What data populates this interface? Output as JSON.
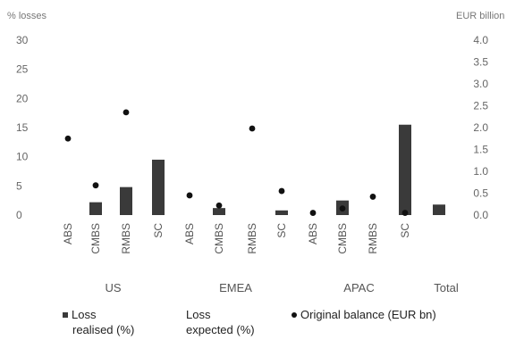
{
  "chart_data": {
    "type": "bar",
    "y_left_label": "% losses",
    "y_right_label": "EUR billion",
    "ylim_left": [
      0,
      30
    ],
    "yticks_left": [
      0,
      5,
      10,
      15,
      20,
      25,
      30
    ],
    "ylim_right": [
      0,
      4.0
    ],
    "yticks_right": [
      "0.0",
      "0.5",
      "1.0",
      "1.5",
      "2.0",
      "2.5",
      "3.0",
      "3.5",
      "4.0"
    ],
    "groups": [
      {
        "label": "US",
        "categories": [
          "ABS",
          "CMBS",
          "RMBS",
          "SC"
        ]
      },
      {
        "label": "EMEA",
        "categories": [
          "ABS",
          "CMBS",
          "RMBS",
          "SC"
        ]
      },
      {
        "label": "APAC",
        "categories": [
          "ABS",
          "CMBS",
          "RMBS",
          "SC"
        ]
      },
      {
        "label": "Total",
        "categories": [
          ""
        ]
      }
    ],
    "series": [
      {
        "name": "Loss realised (%)",
        "axis": "left",
        "kind": "bar",
        "values": [
          0,
          2.2,
          4.8,
          9.5,
          0,
          1.2,
          0,
          0.8,
          0,
          2.5,
          0,
          15.5,
          1.8
        ]
      },
      {
        "name": "Loss expected (%)",
        "axis": "left",
        "kind": "bar",
        "values": [
          0,
          0,
          0,
          0,
          0,
          0,
          0,
          0,
          0,
          0,
          0,
          0,
          0
        ]
      },
      {
        "name": "Original balance (EUR bn)",
        "axis": "right",
        "kind": "point",
        "values": [
          1.75,
          0.68,
          2.35,
          null,
          0.45,
          0.22,
          1.98,
          0.55,
          0.05,
          0.15,
          0.42,
          0.05,
          null
        ]
      }
    ],
    "colors": {
      "bar": "#3a3a3a",
      "point": "#111111"
    }
  },
  "legend": {
    "realised_line1": "Loss",
    "realised_line2": "realised (%)",
    "expected_line1": "Loss",
    "expected_line2": "expected (%)",
    "balance": "Original balance (EUR bn)"
  }
}
